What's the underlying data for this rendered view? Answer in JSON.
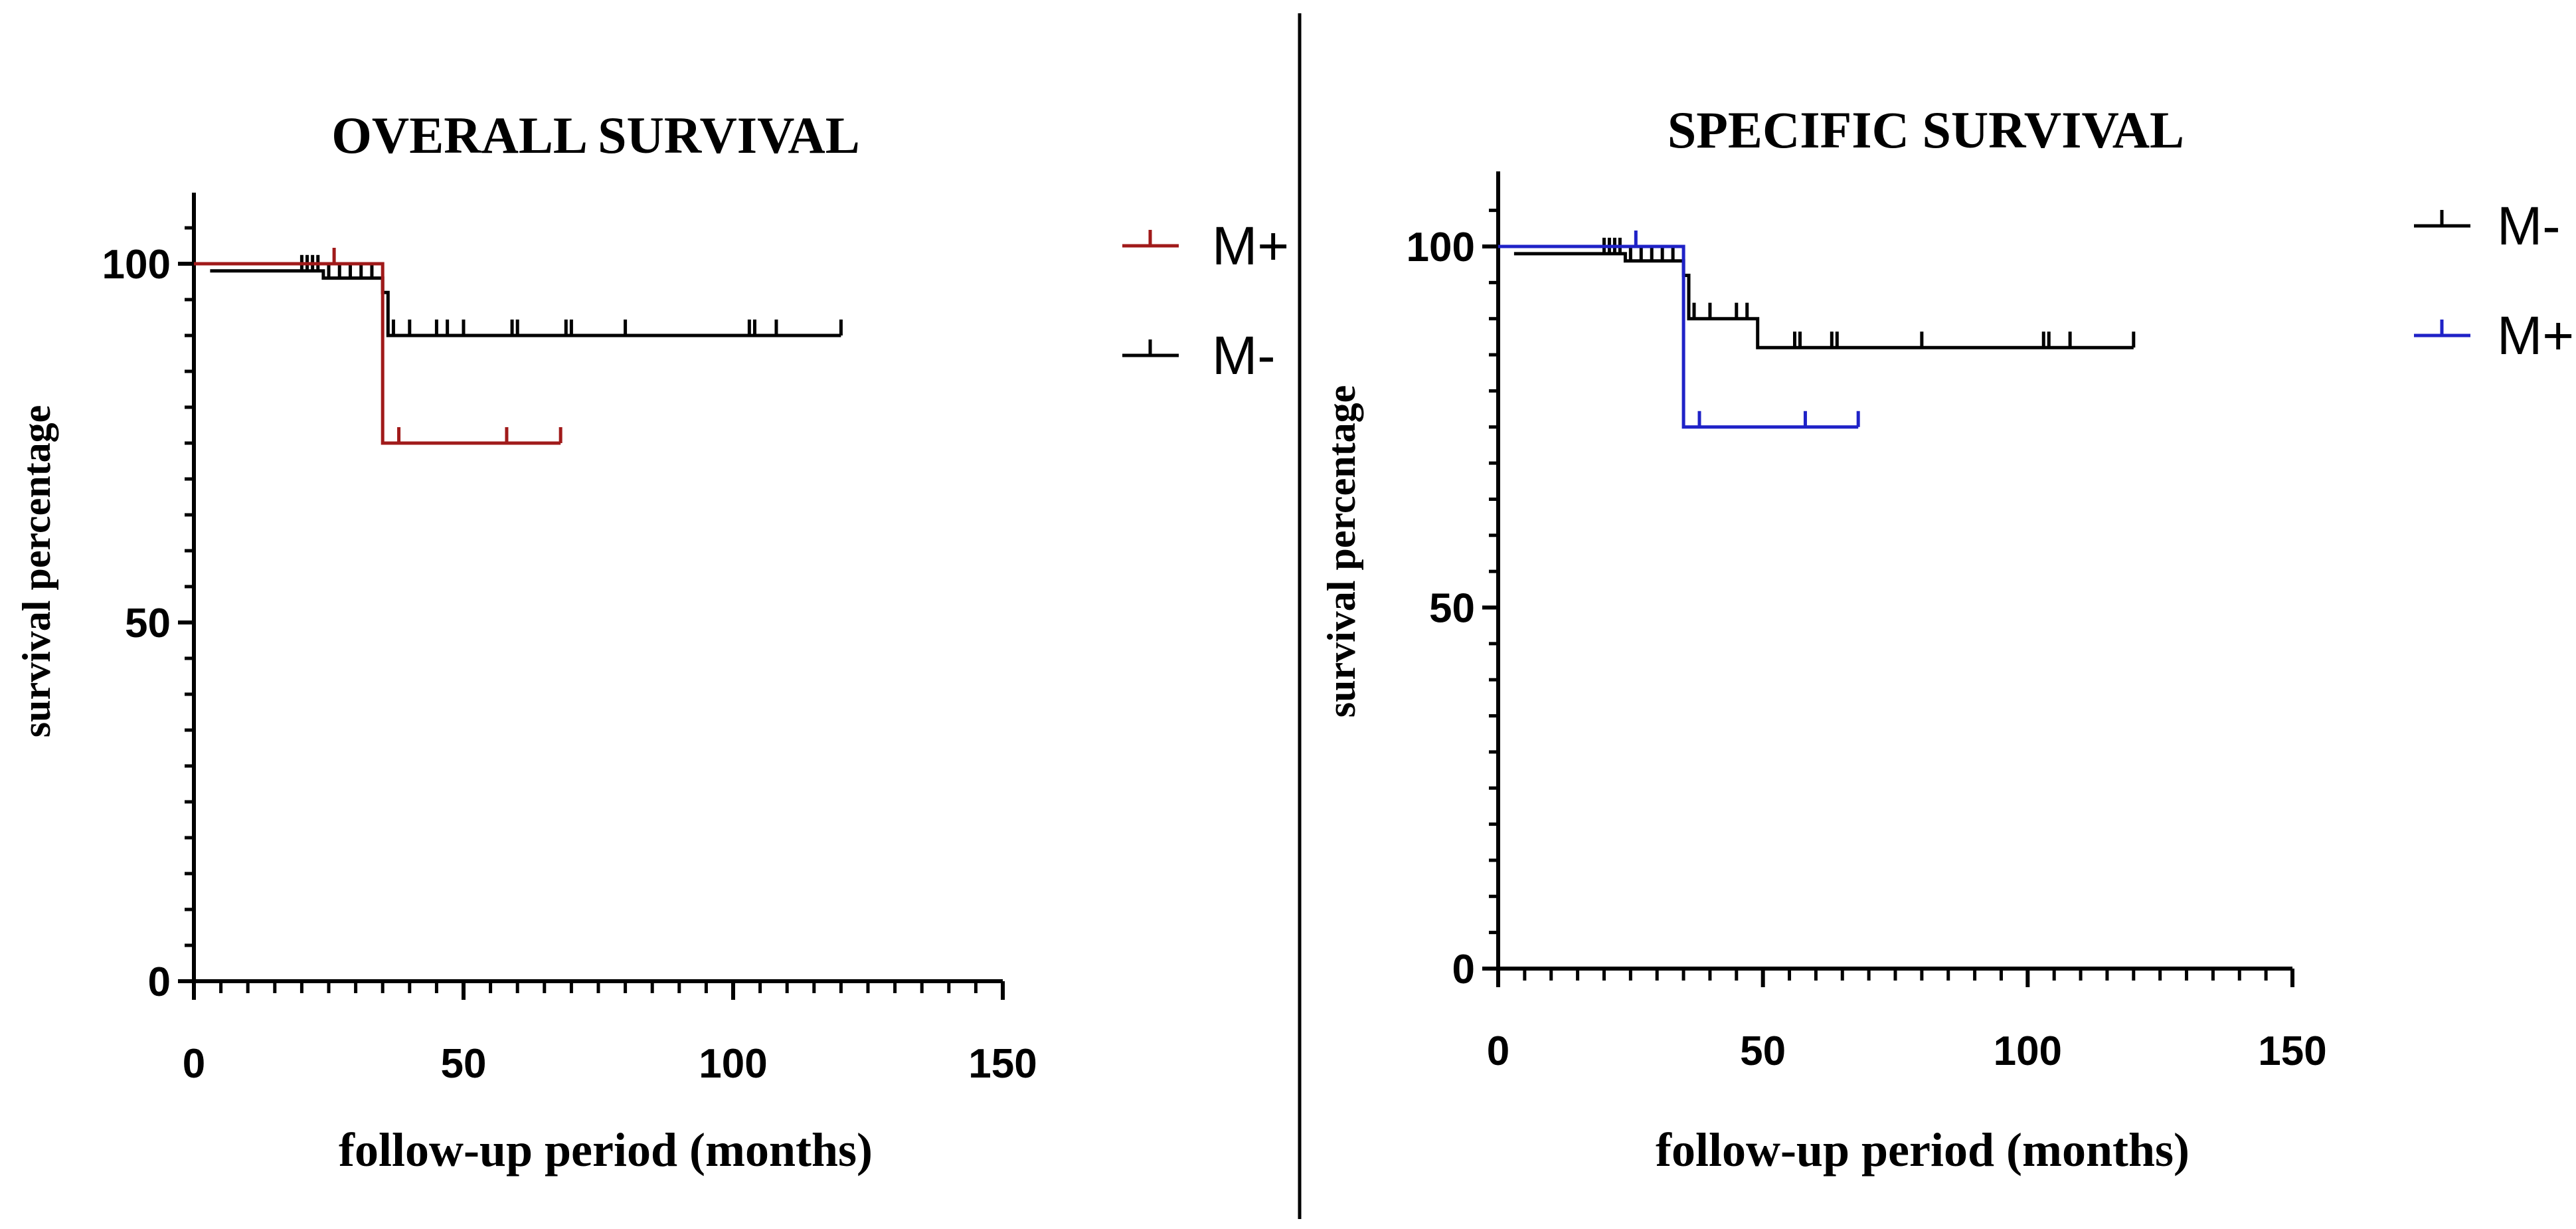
{
  "chart_data": [
    {
      "type": "line",
      "subtype": "kaplan-meier",
      "title": "OVERALL SURVIVAL",
      "xlabel": "follow-up period (months)",
      "ylabel": "survival percentage",
      "xlim": [
        0,
        150
      ],
      "ylim": [
        0,
        110
      ],
      "xticks": [
        0,
        50,
        100,
        150
      ],
      "yticks": [
        0,
        50,
        100
      ],
      "legend": "right",
      "series": [
        {
          "name": "M+",
          "color": "#a01a1a",
          "steps": [
            [
              0,
              100
            ],
            [
              35,
              100
            ],
            [
              35,
              75
            ],
            [
              68,
              75
            ]
          ],
          "censored": [
            [
              26,
              100
            ],
            [
              38,
              75
            ],
            [
              58,
              75
            ],
            [
              68,
              75
            ]
          ]
        },
        {
          "name": "M-",
          "color": "#000000",
          "steps": [
            [
              3,
              99
            ],
            [
              24,
              99
            ],
            [
              24,
              98
            ],
            [
              35,
              98
            ],
            [
              35,
              96
            ],
            [
              36,
              96
            ],
            [
              36,
              90
            ],
            [
              120,
              90
            ]
          ],
          "censored": [
            [
              20,
              99
            ],
            [
              21,
              99
            ],
            [
              22,
              99
            ],
            [
              23,
              99
            ],
            [
              25,
              98
            ],
            [
              27,
              98
            ],
            [
              29,
              98
            ],
            [
              31,
              98
            ],
            [
              33,
              98
            ],
            [
              37,
              90
            ],
            [
              40,
              90
            ],
            [
              45,
              90
            ],
            [
              47,
              90
            ],
            [
              50,
              90
            ],
            [
              59,
              90
            ],
            [
              60,
              90
            ],
            [
              69,
              90
            ],
            [
              70,
              90
            ],
            [
              80,
              90
            ],
            [
              103,
              90
            ],
            [
              104,
              90
            ],
            [
              108,
              90
            ],
            [
              120,
              90
            ]
          ]
        }
      ]
    },
    {
      "type": "line",
      "subtype": "kaplan-meier",
      "title": "SPECIFIC SURVIVAL",
      "xlabel": "follow-up period (months)",
      "ylabel": "survival percentage",
      "xlim": [
        0,
        150
      ],
      "ylim": [
        0,
        110
      ],
      "xticks": [
        0,
        50,
        100,
        150
      ],
      "yticks": [
        0,
        50,
        100
      ],
      "legend": "right",
      "series": [
        {
          "name": "M-",
          "color": "#000000",
          "steps": [
            [
              3,
              99
            ],
            [
              24,
              99
            ],
            [
              24,
              98
            ],
            [
              35,
              98
            ],
            [
              35,
              96
            ],
            [
              36,
              96
            ],
            [
              36,
              90
            ],
            [
              49,
              90
            ],
            [
              49,
              86
            ],
            [
              120,
              86
            ]
          ],
          "censored": [
            [
              20,
              99
            ],
            [
              21,
              99
            ],
            [
              22,
              99
            ],
            [
              23,
              99
            ],
            [
              25,
              98
            ],
            [
              27,
              98
            ],
            [
              29,
              98
            ],
            [
              31,
              98
            ],
            [
              33,
              98
            ],
            [
              37,
              90
            ],
            [
              40,
              90
            ],
            [
              45,
              90
            ],
            [
              47,
              90
            ],
            [
              56,
              86
            ],
            [
              57,
              86
            ],
            [
              63,
              86
            ],
            [
              64,
              86
            ],
            [
              80,
              86
            ],
            [
              103,
              86
            ],
            [
              104,
              86
            ],
            [
              108,
              86
            ],
            [
              120,
              86
            ]
          ]
        },
        {
          "name": "M+",
          "color": "#1f22c7",
          "steps": [
            [
              0,
              100
            ],
            [
              35,
              100
            ],
            [
              35,
              75
            ],
            [
              68,
              75
            ]
          ],
          "censored": [
            [
              26,
              100
            ],
            [
              38,
              75
            ],
            [
              58,
              75
            ],
            [
              68,
              75
            ]
          ]
        }
      ]
    }
  ]
}
